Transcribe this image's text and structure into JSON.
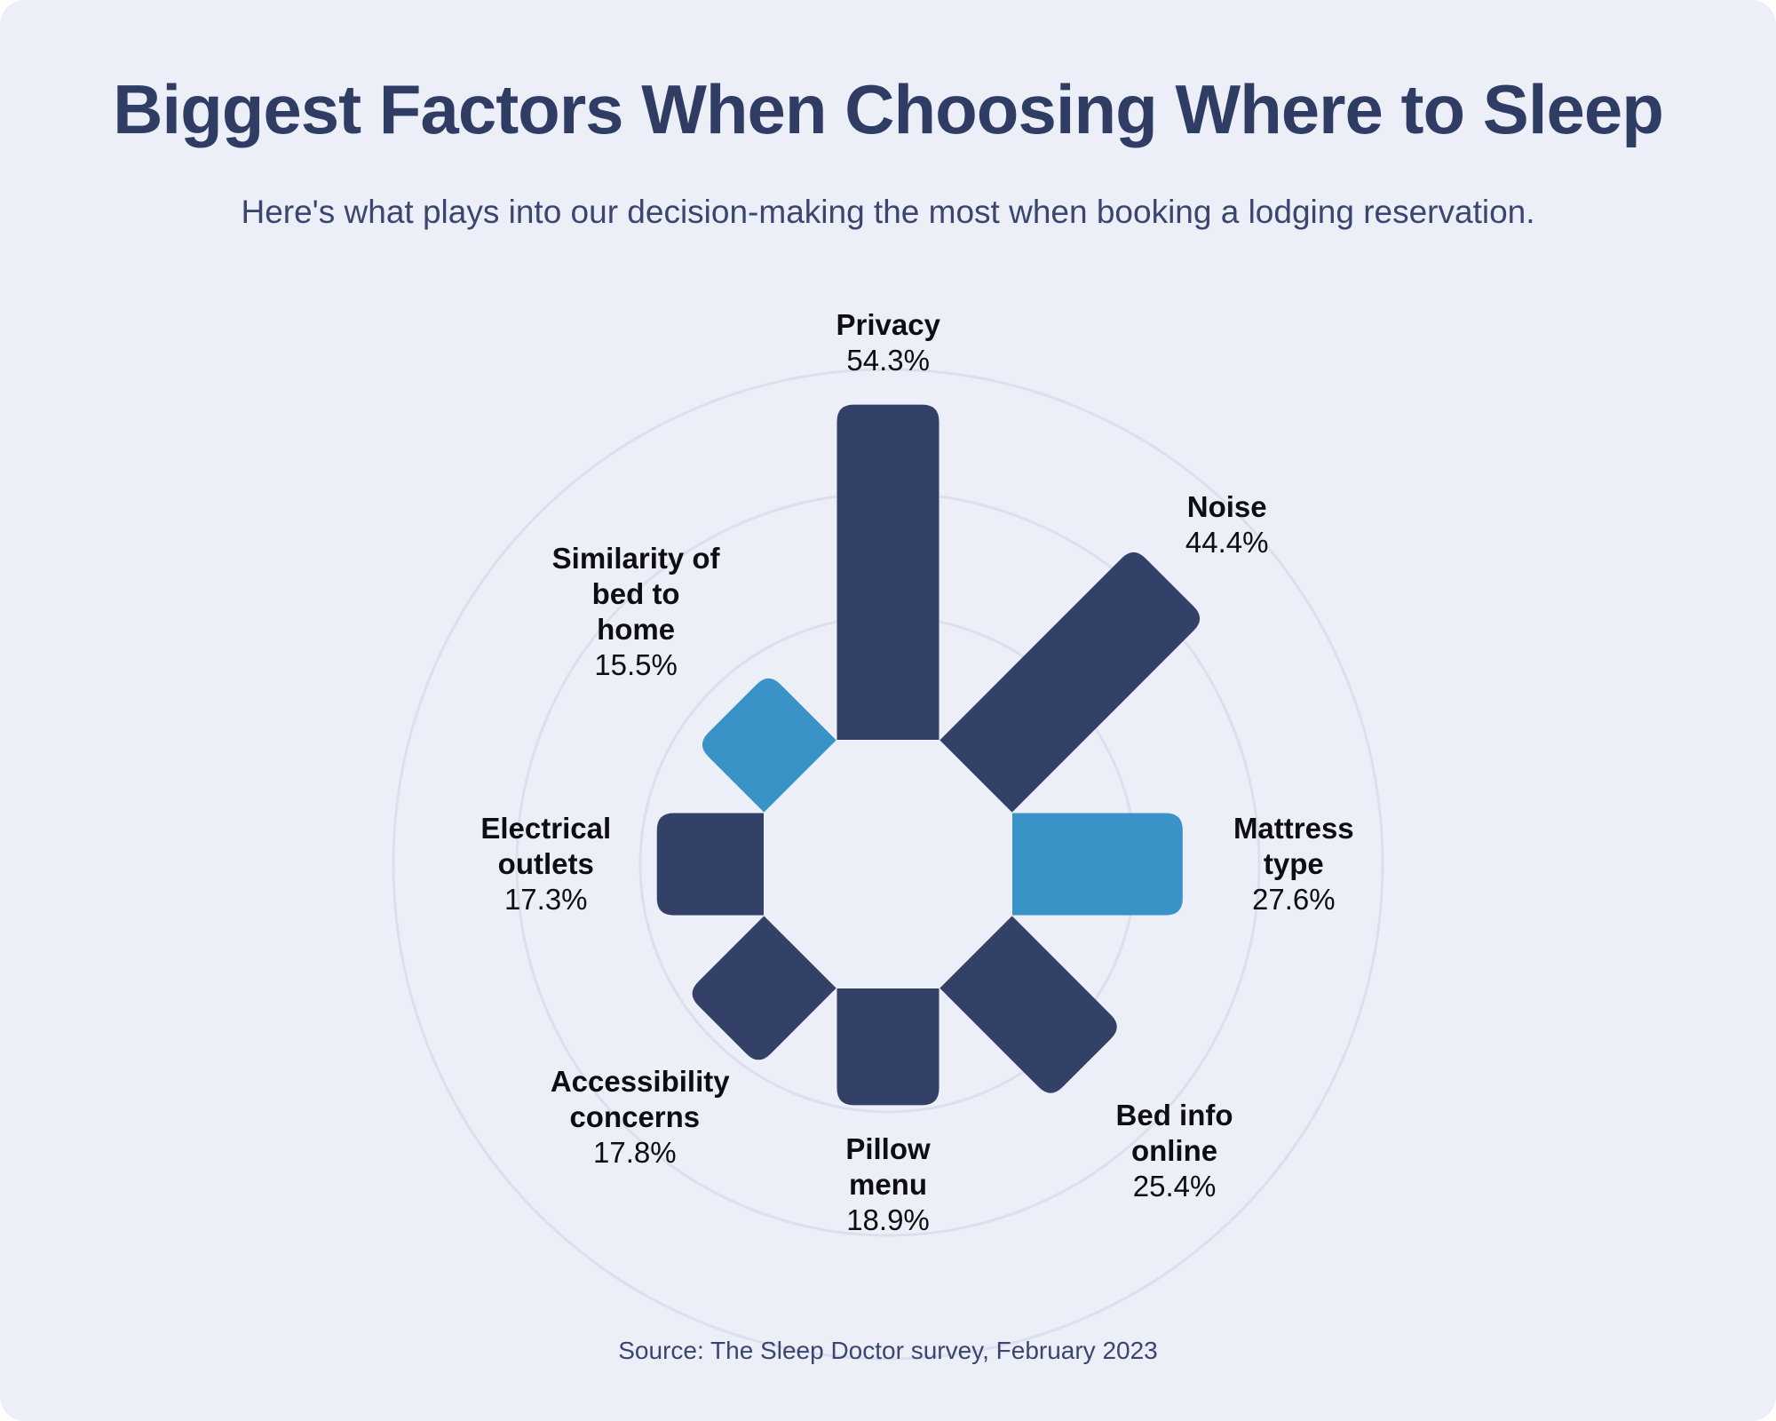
{
  "chart_data": {
    "type": "radial",
    "title": "Biggest Factors When Choosing Where to Sleep",
    "subtitle": "Here's what plays into our decision-making the most when booking a lodging reservation.",
    "source": "Source: The Sleep Doctor survey, February 2023",
    "categories": [
      "Privacy",
      "Noise",
      "Mattress type",
      "Bed info online",
      "Pillow menu",
      "Accessibility concerns",
      "Electrical outlets",
      "Similarity of bed to home"
    ],
    "values": [
      54.3,
      44.4,
      27.6,
      25.4,
      18.9,
      17.8,
      17.3,
      15.5
    ],
    "value_labels": [
      "54.3%",
      "44.4%",
      "27.6%",
      "25.4%",
      "18.9%",
      "17.8%",
      "17.3%",
      "15.5%"
    ],
    "colors": [
      "#334168",
      "#334168",
      "#3a93c6",
      "#334168",
      "#334168",
      "#334168",
      "#334168",
      "#3a93c6"
    ],
    "rlim": [
      0,
      60
    ],
    "rticks": [
      20,
      40,
      60
    ],
    "grid": true
  }
}
